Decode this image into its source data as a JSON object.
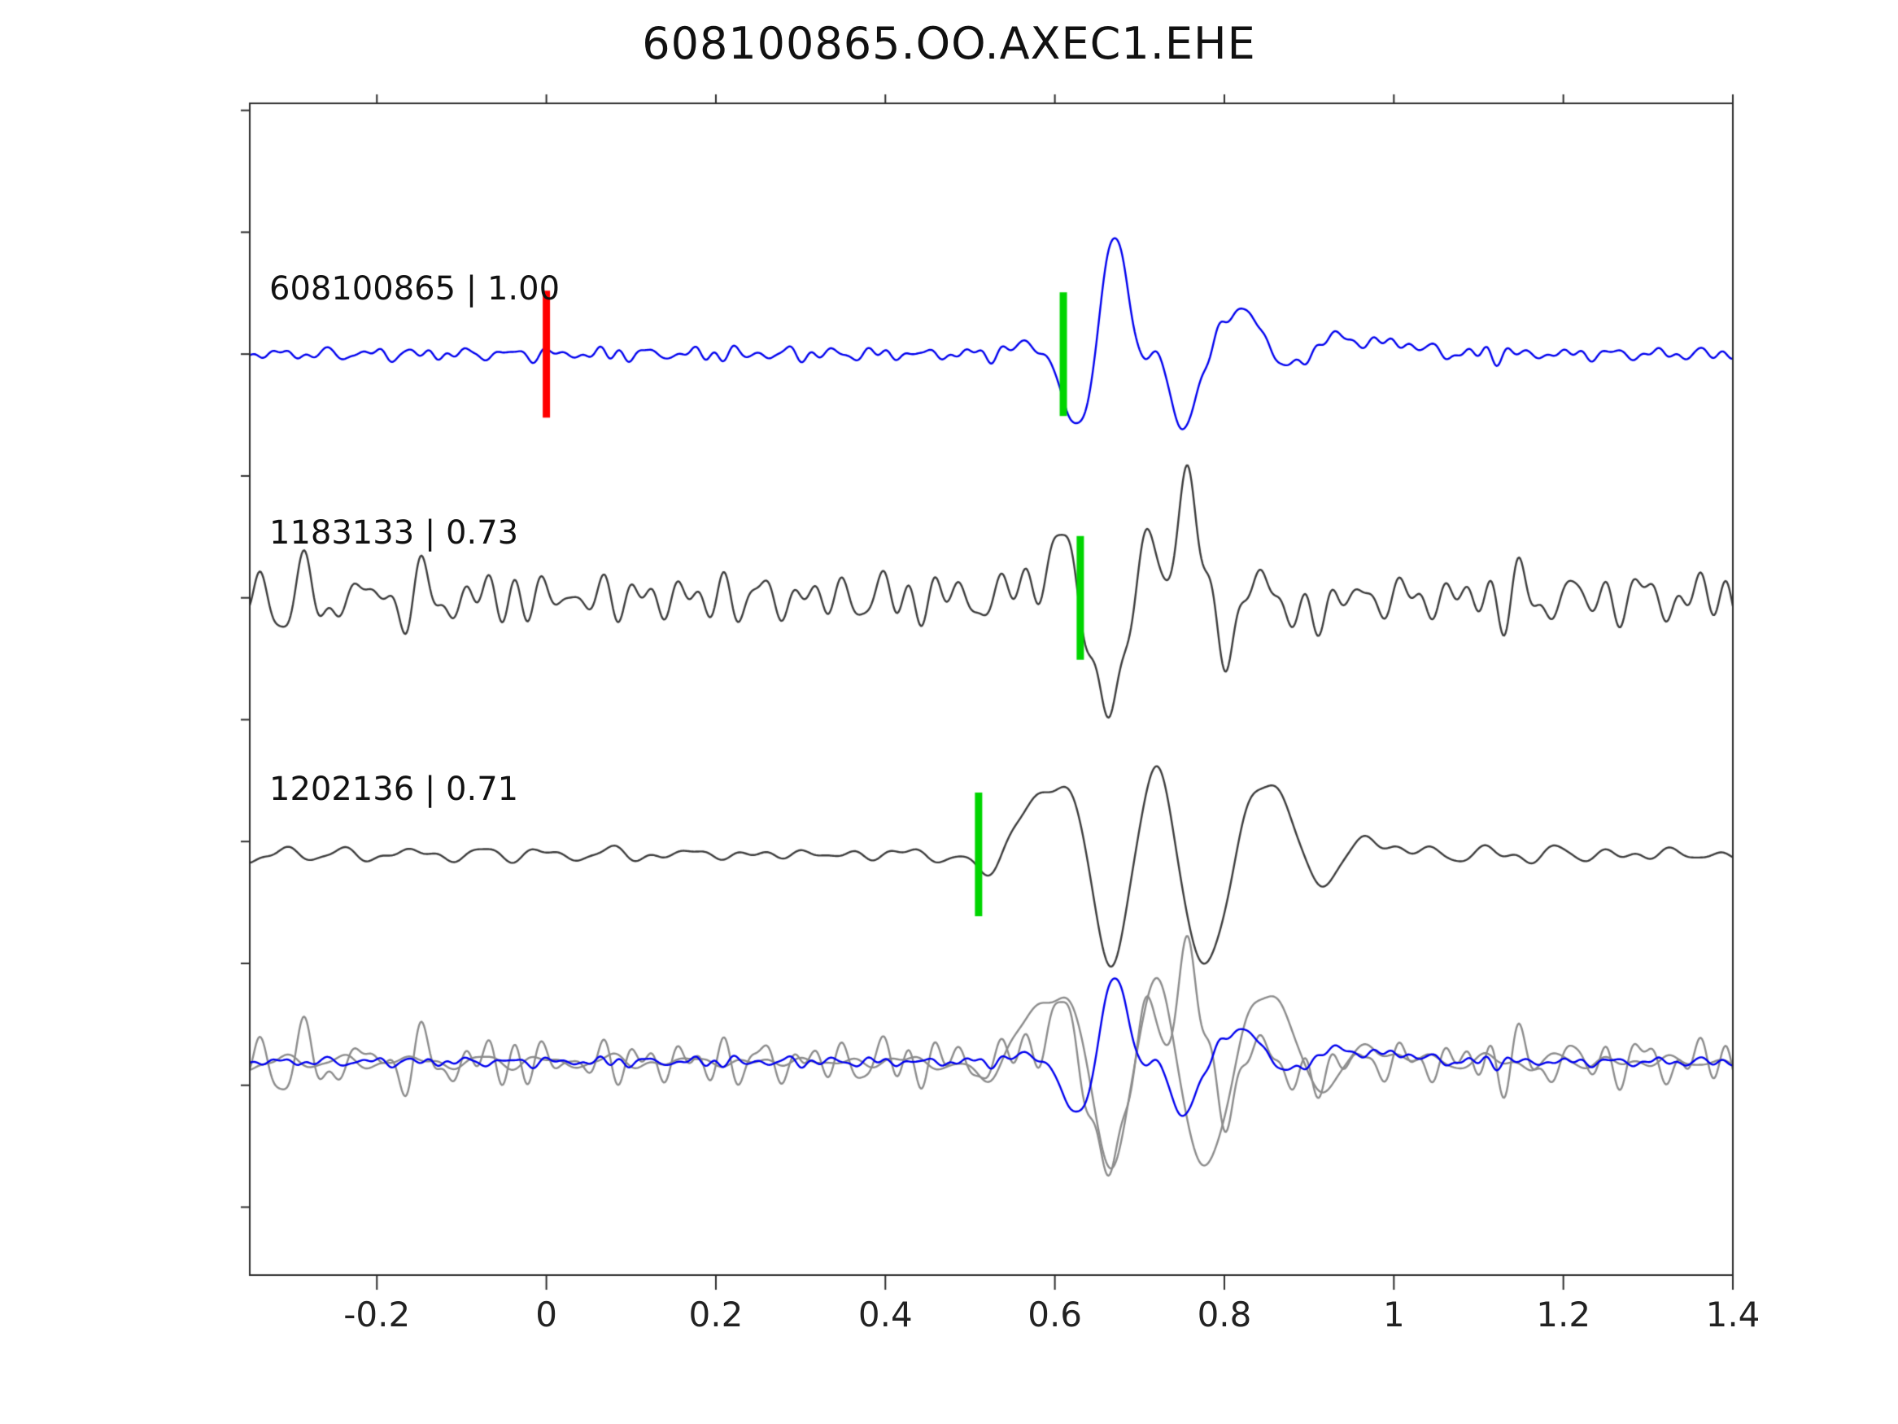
{
  "title": "608100865.OO.AXEC1.EHE",
  "chart_data": {
    "type": "line",
    "title": "608100865.OO.AXEC1.EHE",
    "xlabel": "",
    "ylabel": "",
    "x_range": [
      -0.35,
      1.4
    ],
    "x_ticks": [
      -0.2,
      0,
      0.2,
      0.4,
      0.6,
      0.8,
      1,
      1.2,
      1.4
    ],
    "x_tick_labels": [
      "-0.2",
      "0",
      "0.2",
      "0.4",
      "0.6",
      "0.8",
      "1",
      "1.2",
      "1.4"
    ],
    "grid": false,
    "legend": "none",
    "box_color": "#2b2b2b",
    "tick_color": "#2b2b2b",
    "series": [
      {
        "id": "608100865",
        "label": "608100865 | 1.00",
        "correlation": 1.0,
        "color": "#0000ee",
        "baseline_frac": 0.214,
        "noise": {
          "seed": 7,
          "amp": 10,
          "fmin": 18,
          "fmax": 55
        },
        "bumps": [
          {
            "t": 0.575,
            "a": 14,
            "w": 0.02
          },
          {
            "t": 0.612,
            "a": -32,
            "w": 0.015
          },
          {
            "t": 0.638,
            "a": -105,
            "w": 0.018
          },
          {
            "t": 0.668,
            "a": 165,
            "w": 0.02
          },
          {
            "t": 0.7,
            "a": -42,
            "w": 0.012
          },
          {
            "t": 0.725,
            "a": 32,
            "w": 0.012
          },
          {
            "t": 0.752,
            "a": -95,
            "w": 0.02
          },
          {
            "t": 0.8,
            "a": 42,
            "w": 0.022
          },
          {
            "t": 0.838,
            "a": 36,
            "w": 0.02
          },
          {
            "t": 0.872,
            "a": -26,
            "w": 0.02
          },
          {
            "t": 0.93,
            "a": 20,
            "w": 0.025
          },
          {
            "t": 1.0,
            "a": 14,
            "w": 0.03
          }
        ],
        "markers": [
          {
            "x": 0.0,
            "color": "#ff0000",
            "half_height": 78,
            "name": "reference-pick"
          },
          {
            "x": 0.61,
            "color": "#00d500",
            "half_height": 76,
            "name": "pick"
          }
        ]
      },
      {
        "id": "1183133",
        "label": "1183133 | 0.73",
        "correlation": 0.73,
        "color": "#3c3c3c",
        "baseline_frac": 0.422,
        "noise": {
          "seed": 13,
          "amp": 42,
          "fmin": 12,
          "fmax": 40
        },
        "bumps": [
          {
            "t": 0.6,
            "a": 60,
            "w": 0.02
          },
          {
            "t": 0.648,
            "a": -38,
            "w": 0.015
          },
          {
            "t": 0.678,
            "a": -150,
            "w": 0.02
          },
          {
            "t": 0.708,
            "a": 130,
            "w": 0.02
          },
          {
            "t": 0.738,
            "a": -65,
            "w": 0.015
          },
          {
            "t": 0.762,
            "a": 150,
            "w": 0.02
          },
          {
            "t": 0.8,
            "a": -95,
            "w": 0.02
          },
          {
            "t": 0.842,
            "a": 45,
            "w": 0.02
          },
          {
            "t": 0.885,
            "a": -35,
            "w": 0.02
          }
        ],
        "markers": [
          {
            "x": 0.63,
            "color": "#00d500",
            "half_height": 76,
            "name": "pick"
          }
        ]
      },
      {
        "id": "1202136",
        "label": "1202136 | 0.71",
        "correlation": 0.71,
        "color": "#3c3c3c",
        "baseline_frac": 0.641,
        "noise": {
          "seed": 29,
          "amp": 13,
          "fmin": 8,
          "fmax": 30
        },
        "bumps": [
          {
            "t": 0.515,
            "a": -26,
            "w": 0.015
          },
          {
            "t": 0.565,
            "a": 26,
            "w": 0.02
          },
          {
            "t": 0.615,
            "a": 100,
            "w": 0.03
          },
          {
            "t": 0.667,
            "a": -172,
            "w": 0.025
          },
          {
            "t": 0.717,
            "a": 140,
            "w": 0.025
          },
          {
            "t": 0.777,
            "a": -150,
            "w": 0.028
          },
          {
            "t": 0.845,
            "a": 105,
            "w": 0.03
          },
          {
            "t": 0.91,
            "a": -38,
            "w": 0.03
          },
          {
            "t": 0.97,
            "a": 20,
            "w": 0.03
          }
        ],
        "markers": [
          {
            "x": 0.51,
            "color": "#00d500",
            "half_height": 76,
            "name": "pick"
          }
        ]
      }
    ],
    "overlay": {
      "baseline_frac": 0.818,
      "members": [
        {
          "series_index": 1,
          "color": "#8c8c8c",
          "scale": 0.95
        },
        {
          "series_index": 2,
          "color": "#8c8c8c",
          "scale": 0.95
        },
        {
          "series_index": 0,
          "color": "#0000ee",
          "scale": 0.72
        }
      ]
    }
  }
}
